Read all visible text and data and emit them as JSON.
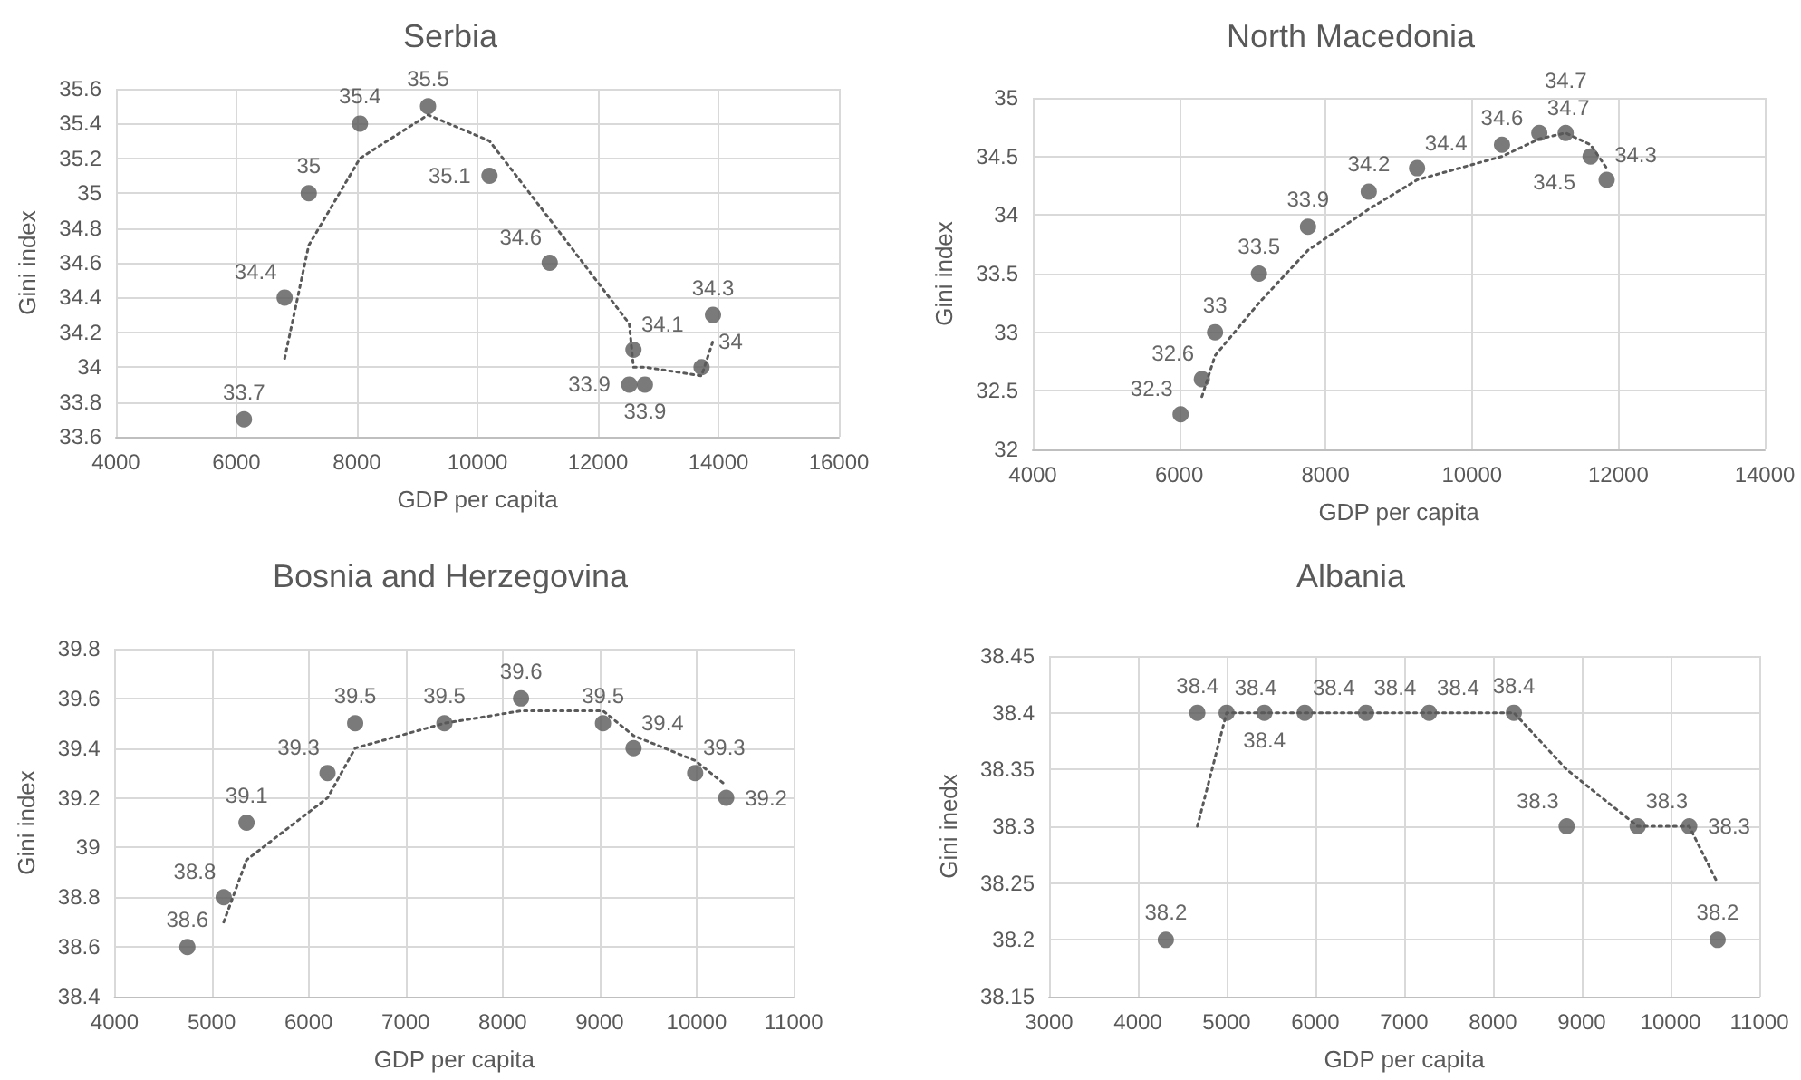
{
  "chart_data": [
    {
      "type": "scatter",
      "title": "Serbia",
      "xlabel": "GDP per capita",
      "ylabel": "Gini index",
      "xlim": [
        4000,
        16000
      ],
      "xticks": [
        4000,
        6000,
        8000,
        10000,
        12000,
        14000,
        16000
      ],
      "ylim": [
        33.6,
        35.6
      ],
      "yticks": [
        33.6,
        33.8,
        34,
        34.2,
        34.4,
        34.6,
        34.8,
        35,
        35.2,
        35.4,
        35.6
      ],
      "grid": true,
      "marker": "circle",
      "series": [
        {
          "color": "#595959",
          "x": [
            6125,
            6800,
            7200,
            8050,
            9180,
            10200,
            11200,
            12520,
            12590,
            12780,
            13720,
            13910
          ],
          "values": [
            33.7,
            34.4,
            35,
            35.4,
            35.5,
            35.1,
            34.6,
            33.9,
            34.1,
            33.9,
            34,
            34.3
          ],
          "value_labels": [
            "33.7",
            "34.4",
            "35",
            "35.4",
            "35.5",
            "35.1",
            "34.6",
            "33.9",
            "34.1",
            "33.9",
            "34",
            "34.3"
          ]
        },
        {
          "type": "line",
          "color": "#595959",
          "line_style": "dotted",
          "marker": "none",
          "x": [
            6800,
            7200,
            8050,
            9180,
            10200,
            11200,
            12520,
            12590,
            12780,
            13720,
            13910
          ],
          "values": [
            34.05,
            34.7,
            35.2,
            35.45,
            35.3,
            34.85,
            34.25,
            34.0,
            34.0,
            33.95,
            34.15
          ]
        }
      ]
    },
    {
      "type": "scatter",
      "title": "North Macedonia",
      "xlabel": "GDP per capita",
      "ylabel": "Gini index",
      "xlim": [
        4000,
        14000
      ],
      "xticks": [
        4000,
        6000,
        8000,
        10000,
        12000,
        14000
      ],
      "ylim": [
        32,
        35
      ],
      "yticks": [
        32,
        32.5,
        33,
        33.5,
        34,
        34.5,
        35
      ],
      "grid": true,
      "marker": "circle",
      "series": [
        {
          "color": "#595959",
          "x": [
            6020,
            6310,
            6490,
            7090,
            7760,
            8590,
            9250,
            10410,
            10920,
            11280,
            11620,
            11840
          ],
          "values": [
            32.3,
            32.6,
            33,
            33.5,
            33.9,
            34.2,
            34.4,
            34.6,
            34.7,
            34.7,
            34.5,
            34.3
          ],
          "value_labels": [
            "32.3",
            "32.6",
            "33",
            "33.5",
            "33.9",
            "34.2",
            "34.4",
            "34.6",
            "34.7",
            "34.7",
            "34.5",
            "34.3"
          ]
        },
        {
          "type": "line",
          "color": "#595959",
          "line_style": "dotted",
          "marker": "none",
          "x": [
            6310,
            6490,
            7090,
            7760,
            8590,
            9250,
            10410,
            10920,
            11280,
            11620,
            11840
          ],
          "values": [
            32.45,
            32.8,
            33.25,
            33.7,
            34.05,
            34.3,
            34.5,
            34.65,
            34.7,
            34.6,
            34.4
          ]
        }
      ]
    },
    {
      "type": "scatter",
      "title": "Bosnia and Herzegovina",
      "xlabel": "GDP per capita",
      "ylabel": "Gini index",
      "xlim": [
        4000,
        11000
      ],
      "xticks": [
        4000,
        5000,
        6000,
        7000,
        8000,
        9000,
        10000,
        11000
      ],
      "ylim": [
        38.4,
        39.8
      ],
      "yticks": [
        38.4,
        38.6,
        38.8,
        39,
        39.2,
        39.4,
        39.6,
        39.8
      ],
      "grid": true,
      "marker": "circle",
      "series": [
        {
          "color": "#595959",
          "x": [
            4750,
            5125,
            5360,
            6195,
            6480,
            7400,
            8190,
            9035,
            9350,
            9985,
            10305
          ],
          "values": [
            38.6,
            38.8,
            39.1,
            39.3,
            39.5,
            39.5,
            39.6,
            39.5,
            39.4,
            39.3,
            39.2
          ],
          "value_labels": [
            "38.6",
            "38.8",
            "39.1",
            "39.3",
            "39.5",
            "39.5",
            "39.6",
            "39.5",
            "39.4",
            "39.3",
            "39.2"
          ]
        },
        {
          "type": "line",
          "color": "#595959",
          "line_style": "dotted",
          "marker": "none",
          "x": [
            5125,
            5360,
            6195,
            6480,
            7400,
            8190,
            9035,
            9350,
            9985,
            10305
          ],
          "values": [
            38.7,
            38.95,
            39.2,
            39.4,
            39.5,
            39.55,
            39.55,
            39.45,
            39.35,
            39.25
          ]
        }
      ]
    },
    {
      "type": "scatter",
      "title": "Albania",
      "xlabel": "GDP per capita",
      "ylabel": "Gini inedx",
      "xlim": [
        3000,
        11000
      ],
      "xticks": [
        3000,
        4000,
        5000,
        6000,
        7000,
        8000,
        9000,
        10000,
        11000
      ],
      "ylim": [
        38.15,
        38.45
      ],
      "yticks": [
        38.15,
        38.2,
        38.25,
        38.3,
        38.35,
        38.4,
        38.45
      ],
      "grid": true,
      "marker": "circle",
      "series": [
        {
          "color": "#595959",
          "x": [
            4315,
            4670,
            5000,
            5425,
            5880,
            6570,
            7280,
            8235,
            8830,
            9630,
            10210,
            10530
          ],
          "values": [
            38.2,
            38.4,
            38.4,
            38.4,
            38.4,
            38.4,
            38.4,
            38.4,
            38.3,
            38.3,
            38.3,
            38.2
          ],
          "value_labels": [
            "38.2",
            "38.4",
            "38.4",
            "38.4",
            "38.4",
            "38.4",
            "38.4",
            "38.4",
            "38.3",
            "38.3",
            "38.3",
            "38.2"
          ]
        },
        {
          "type": "line",
          "color": "#595959",
          "line_style": "dotted",
          "marker": "none",
          "x": [
            4670,
            5000,
            5425,
            5880,
            6570,
            7280,
            8235,
            8830,
            9630,
            10210,
            10530
          ],
          "values": [
            38.3,
            38.4,
            38.4,
            38.4,
            38.4,
            38.4,
            38.4,
            38.35,
            38.3,
            38.3,
            38.25
          ]
        }
      ]
    }
  ]
}
